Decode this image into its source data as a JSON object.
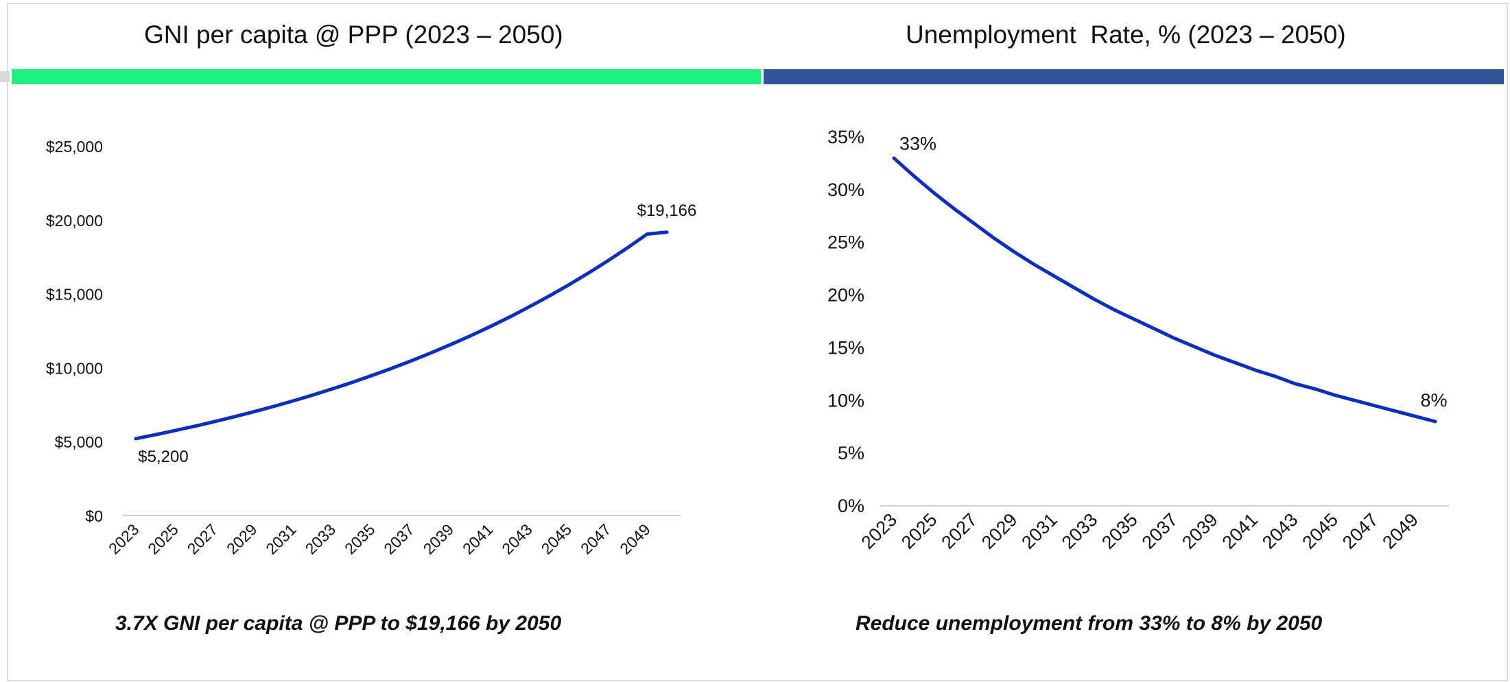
{
  "colors": {
    "gni_bar": "#1ef07e",
    "unemp_bar": "#2f5597",
    "line": "#0a2fbf",
    "axis": "#d0d0d0"
  },
  "left_panel": {
    "title": "GNI per capita @ PPP (2023 – 2050)",
    "caption": "3.7X GNI per capita @ PPP to $19,166 by 2050"
  },
  "right_panel": {
    "title": "Unemployment  Rate, % (2023 – 2050)",
    "caption": "Reduce unemployment from 33% to 8% by 2050"
  },
  "chart_data": [
    {
      "type": "line",
      "x": [
        2023,
        2024,
        2025,
        2026,
        2027,
        2028,
        2029,
        2030,
        2031,
        2032,
        2033,
        2034,
        2035,
        2036,
        2037,
        2038,
        2039,
        2040,
        2041,
        2042,
        2043,
        2044,
        2045,
        2046,
        2047,
        2048,
        2049,
        2050
      ],
      "x_tick_labels": [
        "2023",
        "2025",
        "2027",
        "2029",
        "2031",
        "2033",
        "2035",
        "2037",
        "2039",
        "2041",
        "2043",
        "2045",
        "2047",
        "2049"
      ],
      "series": [
        {
          "values": [
            5200,
            5466,
            5746,
            6040,
            6349,
            6674,
            7016,
            7375,
            7752,
            8149,
            8566,
            9005,
            9466,
            9950,
            10460,
            10995,
            11558,
            12149,
            12771,
            13425,
            14112,
            14835,
            15594,
            16392,
            17231,
            18113,
            19040,
            19166
          ]
        }
      ],
      "ylim": [
        0,
        25000
      ],
      "y_ticks": [
        0,
        5000,
        10000,
        15000,
        20000,
        25000
      ],
      "y_tick_labels": [
        "$0",
        "$5,000",
        "$10,000",
        "$15,000",
        "$20,000",
        "$25,000"
      ],
      "annotations": [
        {
          "x": 2023,
          "text": "$5,200"
        },
        {
          "x": 2050,
          "text": "$19,166"
        }
      ],
      "grid": false,
      "legend": "none"
    },
    {
      "type": "line",
      "x": [
        2023,
        2024,
        2025,
        2026,
        2027,
        2028,
        2029,
        2030,
        2031,
        2032,
        2033,
        2034,
        2035,
        2036,
        2037,
        2038,
        2039,
        2040,
        2041,
        2042,
        2043,
        2044,
        2045,
        2046,
        2047,
        2048,
        2049,
        2050
      ],
      "x_tick_labels": [
        "2023",
        "2025",
        "2027",
        "2029",
        "2031",
        "2033",
        "2035",
        "2037",
        "2039",
        "2041",
        "2043",
        "2045",
        "2047",
        "2049"
      ],
      "series": [
        {
          "values": [
            33,
            31.3,
            29.7,
            28.2,
            26.8,
            25.4,
            24.1,
            22.9,
            21.8,
            20.7,
            19.6,
            18.6,
            17.7,
            16.8,
            15.9,
            15.1,
            14.3,
            13.6,
            12.9,
            12.3,
            11.6,
            11.1,
            10.5,
            10.0,
            9.5,
            9.0,
            8.5,
            8
          ]
        }
      ],
      "ylim": [
        0,
        35
      ],
      "y_ticks": [
        0,
        5,
        10,
        15,
        20,
        25,
        30,
        35
      ],
      "y_tick_labels": [
        "0%",
        "5%",
        "10%",
        "15%",
        "20%",
        "25%",
        "30%",
        "35%"
      ],
      "annotations": [
        {
          "x": 2023,
          "text": "33%"
        },
        {
          "x": 2050,
          "text": "8%"
        }
      ],
      "grid": false,
      "legend": "none"
    }
  ]
}
